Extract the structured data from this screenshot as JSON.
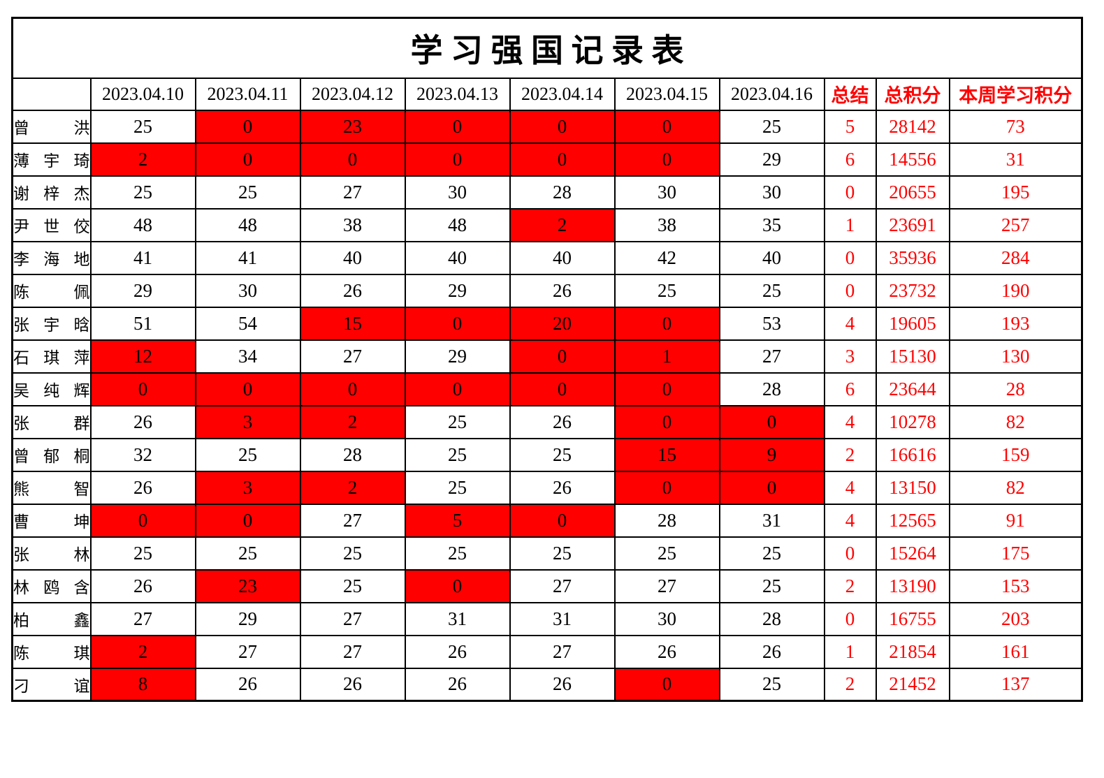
{
  "title": "学 习 强 国 记 录 表",
  "header": {
    "corner": "",
    "dates": [
      "2023.04.10",
      "2023.04.11",
      "2023.04.12",
      "2023.04.13",
      "2023.04.14",
      "2023.04.15",
      "2023.04.16"
    ],
    "summary_label": "总结",
    "total_label": "总积分",
    "week_label": "本周学习积分"
  },
  "rows": [
    {
      "name": "曾洪",
      "scores": [
        {
          "v": 25,
          "red": false
        },
        {
          "v": 0,
          "red": true
        },
        {
          "v": 23,
          "red": true
        },
        {
          "v": 0,
          "red": true
        },
        {
          "v": 0,
          "red": true
        },
        {
          "v": 0,
          "red": true
        },
        {
          "v": 25,
          "red": false
        }
      ],
      "summary": 5,
      "total": 28142,
      "week": 73
    },
    {
      "name": "薄宇琦",
      "scores": [
        {
          "v": 2,
          "red": true
        },
        {
          "v": 0,
          "red": true
        },
        {
          "v": 0,
          "red": true
        },
        {
          "v": 0,
          "red": true
        },
        {
          "v": 0,
          "red": true
        },
        {
          "v": 0,
          "red": true
        },
        {
          "v": 29,
          "red": false
        }
      ],
      "summary": 6,
      "total": 14556,
      "week": 31
    },
    {
      "name": "谢梓杰",
      "scores": [
        {
          "v": 25,
          "red": false
        },
        {
          "v": 25,
          "red": false
        },
        {
          "v": 27,
          "red": false
        },
        {
          "v": 30,
          "red": false
        },
        {
          "v": 28,
          "red": false
        },
        {
          "v": 30,
          "red": false
        },
        {
          "v": 30,
          "red": false
        }
      ],
      "summary": 0,
      "total": 20655,
      "week": 195
    },
    {
      "name": "尹世佼",
      "scores": [
        {
          "v": 48,
          "red": false
        },
        {
          "v": 48,
          "red": false
        },
        {
          "v": 38,
          "red": false
        },
        {
          "v": 48,
          "red": false
        },
        {
          "v": 2,
          "red": true
        },
        {
          "v": 38,
          "red": false
        },
        {
          "v": 35,
          "red": false
        }
      ],
      "summary": 1,
      "total": 23691,
      "week": 257
    },
    {
      "name": "李海地",
      "scores": [
        {
          "v": 41,
          "red": false
        },
        {
          "v": 41,
          "red": false
        },
        {
          "v": 40,
          "red": false
        },
        {
          "v": 40,
          "red": false
        },
        {
          "v": 40,
          "red": false
        },
        {
          "v": 42,
          "red": false
        },
        {
          "v": 40,
          "red": false
        }
      ],
      "summary": 0,
      "total": 35936,
      "week": 284
    },
    {
      "name": "陈佩",
      "scores": [
        {
          "v": 29,
          "red": false
        },
        {
          "v": 30,
          "red": false
        },
        {
          "v": 26,
          "red": false
        },
        {
          "v": 29,
          "red": false
        },
        {
          "v": 26,
          "red": false
        },
        {
          "v": 25,
          "red": false
        },
        {
          "v": 25,
          "red": false
        }
      ],
      "summary": 0,
      "total": 23732,
      "week": 190
    },
    {
      "name": "张宇晗",
      "scores": [
        {
          "v": 51,
          "red": false
        },
        {
          "v": 54,
          "red": false
        },
        {
          "v": 15,
          "red": true
        },
        {
          "v": 0,
          "red": true
        },
        {
          "v": 20,
          "red": true
        },
        {
          "v": 0,
          "red": true
        },
        {
          "v": 53,
          "red": false
        }
      ],
      "summary": 4,
      "total": 19605,
      "week": 193
    },
    {
      "name": "石琪萍",
      "scores": [
        {
          "v": 12,
          "red": true
        },
        {
          "v": 34,
          "red": false
        },
        {
          "v": 27,
          "red": false
        },
        {
          "v": 29,
          "red": false
        },
        {
          "v": 0,
          "red": true
        },
        {
          "v": 1,
          "red": true
        },
        {
          "v": 27,
          "red": false
        }
      ],
      "summary": 3,
      "total": 15130,
      "week": 130
    },
    {
      "name": "吴纯辉",
      "scores": [
        {
          "v": 0,
          "red": true
        },
        {
          "v": 0,
          "red": true
        },
        {
          "v": 0,
          "red": true
        },
        {
          "v": 0,
          "red": true
        },
        {
          "v": 0,
          "red": true
        },
        {
          "v": 0,
          "red": true
        },
        {
          "v": 28,
          "red": false
        }
      ],
      "summary": 6,
      "total": 23644,
      "week": 28
    },
    {
      "name": "张群",
      "scores": [
        {
          "v": 26,
          "red": false
        },
        {
          "v": 3,
          "red": true
        },
        {
          "v": 2,
          "red": true
        },
        {
          "v": 25,
          "red": false
        },
        {
          "v": 26,
          "red": false
        },
        {
          "v": 0,
          "red": true
        },
        {
          "v": 0,
          "red": true
        }
      ],
      "summary": 4,
      "total": 10278,
      "week": 82
    },
    {
      "name": "曾郁桐",
      "scores": [
        {
          "v": 32,
          "red": false
        },
        {
          "v": 25,
          "red": false
        },
        {
          "v": 28,
          "red": false
        },
        {
          "v": 25,
          "red": false
        },
        {
          "v": 25,
          "red": false
        },
        {
          "v": 15,
          "red": true
        },
        {
          "v": 9,
          "red": true
        }
      ],
      "summary": 2,
      "total": 16616,
      "week": 159
    },
    {
      "name": "熊智",
      "scores": [
        {
          "v": 26,
          "red": false
        },
        {
          "v": 3,
          "red": true
        },
        {
          "v": 2,
          "red": true
        },
        {
          "v": 25,
          "red": false
        },
        {
          "v": 26,
          "red": false
        },
        {
          "v": 0,
          "red": true
        },
        {
          "v": 0,
          "red": true
        }
      ],
      "summary": 4,
      "total": 13150,
      "week": 82
    },
    {
      "name": "曹坤",
      "scores": [
        {
          "v": 0,
          "red": true
        },
        {
          "v": 0,
          "red": true
        },
        {
          "v": 27,
          "red": false
        },
        {
          "v": 5,
          "red": true
        },
        {
          "v": 0,
          "red": true
        },
        {
          "v": 28,
          "red": false
        },
        {
          "v": 31,
          "red": false
        }
      ],
      "summary": 4,
      "total": 12565,
      "week": 91
    },
    {
      "name": "张林",
      "scores": [
        {
          "v": 25,
          "red": false
        },
        {
          "v": 25,
          "red": false
        },
        {
          "v": 25,
          "red": false
        },
        {
          "v": 25,
          "red": false
        },
        {
          "v": 25,
          "red": false
        },
        {
          "v": 25,
          "red": false
        },
        {
          "v": 25,
          "red": false
        }
      ],
      "summary": 0,
      "total": 15264,
      "week": 175
    },
    {
      "name": "林鸥含",
      "scores": [
        {
          "v": 26,
          "red": false
        },
        {
          "v": 23,
          "red": true
        },
        {
          "v": 25,
          "red": false
        },
        {
          "v": 0,
          "red": true
        },
        {
          "v": 27,
          "red": false
        },
        {
          "v": 27,
          "red": false
        },
        {
          "v": 25,
          "red": false
        }
      ],
      "summary": 2,
      "total": 13190,
      "week": 153
    },
    {
      "name": "柏鑫",
      "scores": [
        {
          "v": 27,
          "red": false
        },
        {
          "v": 29,
          "red": false
        },
        {
          "v": 27,
          "red": false
        },
        {
          "v": 31,
          "red": false
        },
        {
          "v": 31,
          "red": false
        },
        {
          "v": 30,
          "red": false
        },
        {
          "v": 28,
          "red": false
        }
      ],
      "summary": 0,
      "total": 16755,
      "week": 203
    },
    {
      "name": "陈琪",
      "scores": [
        {
          "v": 2,
          "red": true
        },
        {
          "v": 27,
          "red": false
        },
        {
          "v": 27,
          "red": false
        },
        {
          "v": 26,
          "red": false
        },
        {
          "v": 27,
          "red": false
        },
        {
          "v": 26,
          "red": false
        },
        {
          "v": 26,
          "red": false
        }
      ],
      "summary": 1,
      "total": 21854,
      "week": 161
    },
    {
      "name": "刁谊",
      "scores": [
        {
          "v": 8,
          "red": true
        },
        {
          "v": 26,
          "red": false
        },
        {
          "v": 26,
          "red": false
        },
        {
          "v": 26,
          "red": false
        },
        {
          "v": 26,
          "red": false
        },
        {
          "v": 0,
          "red": true
        },
        {
          "v": 25,
          "red": false
        }
      ],
      "summary": 2,
      "total": 21452,
      "week": 137
    }
  ],
  "colors": {
    "highlight_fill": "#ff0000",
    "accent_text": "#ff0000",
    "border": "#000000",
    "background": "#ffffff"
  }
}
